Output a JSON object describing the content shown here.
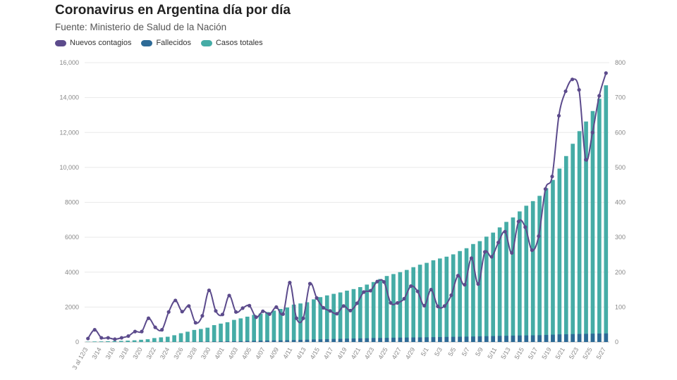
{
  "header": {
    "title": "Coronavirus en Argentina día por día",
    "source": "Fuente: Ministerio de Salud de la Nación"
  },
  "colors": {
    "nuevos": "#5c4b8c",
    "fallecidos": "#2d6a96",
    "casos": "#45aca6",
    "grid": "#e9e9e9",
    "axis": "#888888"
  },
  "chart_data": {
    "type": "bar",
    "title": "Coronavirus en Argentina día por día",
    "subtitle": "Fuente: Ministerio de Salud de la Nación",
    "legend": [
      "Nuevos contagios",
      "Fallecidos",
      "Casos totales"
    ],
    "legend_position": "top-left",
    "grid": true,
    "y_left": {
      "min": 0,
      "max": 16000,
      "ticks": [
        "0",
        "2000",
        "4000",
        "6000",
        "8000",
        "10,000",
        "12,000",
        "14,000",
        "16,000"
      ]
    },
    "y_right": {
      "min": 0,
      "max": 800,
      "ticks": [
        "0",
        "100",
        "200",
        "300",
        "400",
        "500",
        "600",
        "700",
        "800"
      ]
    },
    "x_tick_labels": [
      "3 al 12/3",
      "3/14",
      "3/16",
      "3/18",
      "3/20",
      "3/22",
      "3/24",
      "3/26",
      "3/28",
      "3/30",
      "4/01",
      "4/03",
      "4/05",
      "4/07",
      "4/09",
      "4/11",
      "4/13",
      "4/15",
      "4/17",
      "4/19",
      "4/21",
      "4/23",
      "4/25",
      "4/27",
      "4/29",
      "5/1",
      "5/3",
      "5/5",
      "5/7",
      "5/9",
      "5/11",
      "5/13",
      "5/15",
      "5/17",
      "5/19",
      "5/21",
      "5/23",
      "5/25",
      "5/27"
    ],
    "series": [
      {
        "name": "Casos totales",
        "type": "bar",
        "axis": "left",
        "values": [
          19,
          31,
          34,
          45,
          56,
          65,
          79,
          97,
          128,
          158,
          225,
          266,
          301,
          387,
          502,
          589,
          690,
          745,
          820,
          966,
          1054,
          1133,
          1265,
          1353,
          1451,
          1554,
          1628,
          1715,
          1795,
          1894,
          1975,
          2142,
          2208,
          2277,
          2443,
          2571,
          2669,
          2758,
          2839,
          2941,
          3031,
          3144,
          3288,
          3435,
          3607,
          3780,
          3892,
          4003,
          4127,
          4285,
          4428,
          4532,
          4681,
          4783,
          4887,
          5020,
          5208,
          5371,
          5611,
          5776,
          6034,
          6265,
          6563,
          6879,
          7134,
          7479,
          7805,
          8068,
          8371,
          8809,
          9283,
          9931,
          10649,
          11353,
          12076,
          12628,
          13228,
          13933,
          14702
        ]
      },
      {
        "name": "Fallecidos",
        "type": "bar",
        "axis": "left",
        "values": [
          1,
          2,
          2,
          2,
          2,
          2,
          2,
          3,
          3,
          3,
          4,
          4,
          4,
          6,
          8,
          9,
          12,
          17,
          20,
          24,
          27,
          36,
          43,
          47,
          60,
          68,
          79,
          83,
          91,
          94,
          99,
          110,
          124,
          134,
          147,
          151,
          163,
          174,
          180,
          196,
          201,
          208,
          215,
          228,
          229,
          235,
          246,
          250,
          255,
          260,
          263,
          270,
          277,
          283,
          291,
          297,
          301,
          306,
          314,
          326,
          332,
          341,
          350,
          355,
          366,
          374,
          377,
          382,
          390,
          405,
          419,
          436,
          442,
          453,
          459,
          467,
          478,
          484,
          490
        ]
      },
      {
        "name": "Nuevos contagios",
        "type": "line",
        "axis": "right",
        "values": [
          10,
          35,
          12,
          12,
          8,
          12,
          17,
          30,
          30,
          68,
          42,
          35,
          86,
          119,
          87,
          103,
          55,
          75,
          148,
          89,
          79,
          133,
          86,
          97,
          104,
          71,
          88,
          80,
          100,
          80,
          170,
          68,
          68,
          167,
          126,
          98,
          89,
          81,
          103,
          90,
          111,
          143,
          147,
          173,
          172,
          112,
          112,
          124,
          160,
          145,
          104,
          150,
          102,
          103,
          134,
          190,
          164,
          240,
          166,
          258,
          244,
          285,
          316,
          255,
          345,
          329,
          263,
          303,
          438,
          474,
          648,
          718,
          752,
          722,
          522,
          600,
          705,
          770
        ]
      }
    ]
  }
}
